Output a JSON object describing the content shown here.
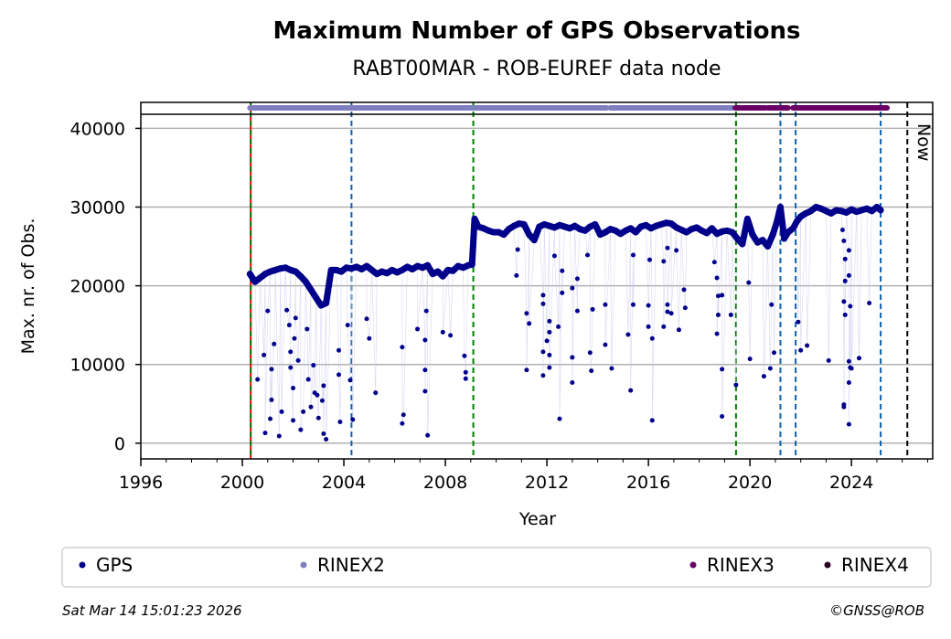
{
  "chart_data": {
    "type": "scatter",
    "title": "Maximum Number of GPS Observations",
    "subtitle": "RABT00MAR - ROB-EUREF data node",
    "xlabel": "Year",
    "ylabel": "Max. nr. of Obs.",
    "xlim": [
      1996,
      2027.2
    ],
    "ylim": [
      -2000,
      43300
    ],
    "xticks": [
      1996,
      2000,
      2004,
      2008,
      2012,
      2016,
      2020,
      2024
    ],
    "xtick_labels": [
      "1996",
      "2000",
      "2004",
      "2008",
      "2012",
      "2016",
      "2020",
      "2024"
    ],
    "yticks": [
      0,
      10000,
      20000,
      30000,
      40000
    ],
    "ytick_labels": [
      "0",
      "10000",
      "20000",
      "30000",
      "40000"
    ],
    "grid": "horizontal",
    "legend_placement": "bottom",
    "legend": [
      {
        "label": "GPS",
        "color": "#00008b"
      },
      {
        "label": "RINEX2",
        "color": "#7f7fbf"
      },
      {
        "label": "RINEX3",
        "color": "#6a0066"
      },
      {
        "label": "RINEX4",
        "color": "#2a0020"
      }
    ],
    "now_label": "Now",
    "now_year": 2026.2,
    "event_lines": [
      {
        "year": 2000.33,
        "color": "#ff0000",
        "style": "solid"
      },
      {
        "year": 2000.33,
        "color": "#008000",
        "style": "dashed"
      },
      {
        "year": 2004.3,
        "color": "#1060b0",
        "style": "dashed"
      },
      {
        "year": 2009.1,
        "color": "#008000",
        "style": "dashed"
      },
      {
        "year": 2019.45,
        "color": "#008000",
        "style": "dashed"
      },
      {
        "year": 2021.2,
        "color": "#1060b0",
        "style": "dashed"
      },
      {
        "year": 2021.8,
        "color": "#1060b0",
        "style": "dashed"
      },
      {
        "year": 2025.15,
        "color": "#1060b0",
        "style": "dashed"
      },
      {
        "year": 2026.2,
        "color": "#000000",
        "style": "dashed"
      }
    ],
    "rinex_bands": [
      {
        "format": "RINEX2",
        "from": 2000.3,
        "to": 2014.35,
        "color": "#7f7fbf"
      },
      {
        "format": "RINEX2",
        "from": 2014.5,
        "to": 2019.3,
        "color": "#7f7fbf"
      },
      {
        "format": "RINEX3",
        "from": 2019.42,
        "to": 2020.6,
        "color": "#6a0066"
      },
      {
        "format": "RINEX3",
        "from": 2020.7,
        "to": 2021.5,
        "color": "#6a0066"
      },
      {
        "format": "RINEX3",
        "from": 2021.7,
        "to": 2025.4,
        "color": "#6a0066"
      }
    ],
    "gps_series": {
      "name": "GPS",
      "color": "#00008b",
      "baseline": [
        [
          2000.3,
          21500
        ],
        [
          2000.5,
          20500
        ],
        [
          2000.7,
          21000
        ],
        [
          2000.9,
          21500
        ],
        [
          2001.1,
          21800
        ],
        [
          2001.3,
          22000
        ],
        [
          2001.5,
          22200
        ],
        [
          2001.7,
          22300
        ],
        [
          2001.9,
          22000
        ],
        [
          2002.1,
          21800
        ],
        [
          2002.3,
          21200
        ],
        [
          2002.5,
          20500
        ],
        [
          2002.7,
          19500
        ],
        [
          2002.9,
          18500
        ],
        [
          2003.1,
          17500
        ],
        [
          2003.3,
          17800
        ],
        [
          2003.5,
          22000
        ],
        [
          2003.7,
          22000
        ],
        [
          2003.9,
          21800
        ],
        [
          2004.1,
          22300
        ],
        [
          2004.3,
          22200
        ],
        [
          2004.5,
          22400
        ],
        [
          2004.7,
          22100
        ],
        [
          2004.9,
          22500
        ],
        [
          2005.1,
          22000
        ],
        [
          2005.3,
          21500
        ],
        [
          2005.5,
          21800
        ],
        [
          2005.7,
          21600
        ],
        [
          2005.9,
          22000
        ],
        [
          2006.1,
          21700
        ],
        [
          2006.3,
          22000
        ],
        [
          2006.5,
          22400
        ],
        [
          2006.7,
          22100
        ],
        [
          2006.9,
          22500
        ],
        [
          2007.1,
          22300
        ],
        [
          2007.3,
          22600
        ],
        [
          2007.5,
          21500
        ],
        [
          2007.7,
          21800
        ],
        [
          2007.9,
          21200
        ],
        [
          2008.1,
          22000
        ],
        [
          2008.3,
          21900
        ],
        [
          2008.5,
          22500
        ],
        [
          2008.7,
          22300
        ],
        [
          2008.9,
          22600
        ],
        [
          2009.05,
          22700
        ],
        [
          2009.15,
          28500
        ],
        [
          2009.3,
          27500
        ],
        [
          2009.5,
          27300
        ],
        [
          2009.7,
          27000
        ],
        [
          2009.9,
          26800
        ],
        [
          2010.1,
          26800
        ],
        [
          2010.3,
          26500
        ],
        [
          2010.5,
          27200
        ],
        [
          2010.7,
          27600
        ],
        [
          2010.9,
          27900
        ],
        [
          2011.1,
          27800
        ],
        [
          2011.3,
          26500
        ],
        [
          2011.5,
          25800
        ],
        [
          2011.7,
          27500
        ],
        [
          2011.9,
          27800
        ],
        [
          2012.1,
          27600
        ],
        [
          2012.3,
          27400
        ],
        [
          2012.5,
          27700
        ],
        [
          2012.7,
          27500
        ],
        [
          2012.9,
          27300
        ],
        [
          2013.1,
          27600
        ],
        [
          2013.3,
          27200
        ],
        [
          2013.5,
          27000
        ],
        [
          2013.7,
          27500
        ],
        [
          2013.9,
          27800
        ],
        [
          2014.1,
          26500
        ],
        [
          2014.3,
          26800
        ],
        [
          2014.5,
          27200
        ],
        [
          2014.7,
          27000
        ],
        [
          2014.9,
          26600
        ],
        [
          2015.1,
          27000
        ],
        [
          2015.3,
          27300
        ],
        [
          2015.5,
          26800
        ],
        [
          2015.7,
          27500
        ],
        [
          2015.9,
          27700
        ],
        [
          2016.1,
          27300
        ],
        [
          2016.3,
          27600
        ],
        [
          2016.5,
          27800
        ],
        [
          2016.7,
          28000
        ],
        [
          2016.9,
          27900
        ],
        [
          2017.1,
          27400
        ],
        [
          2017.3,
          27100
        ],
        [
          2017.5,
          26800
        ],
        [
          2017.7,
          27200
        ],
        [
          2017.9,
          27400
        ],
        [
          2018.1,
          27000
        ],
        [
          2018.3,
          26700
        ],
        [
          2018.5,
          27300
        ],
        [
          2018.7,
          26600
        ],
        [
          2018.9,
          26900
        ],
        [
          2019.1,
          27000
        ],
        [
          2019.3,
          26800
        ],
        [
          2019.5,
          26000
        ],
        [
          2019.7,
          25300
        ],
        [
          2019.9,
          28500
        ],
        [
          2020.1,
          26500
        ],
        [
          2020.3,
          25500
        ],
        [
          2020.5,
          25800
        ],
        [
          2020.7,
          25000
        ],
        [
          2020.9,
          26500
        ],
        [
          2021.05,
          28000
        ],
        [
          2021.2,
          30000
        ],
        [
          2021.35,
          26000
        ],
        [
          2021.5,
          26800
        ],
        [
          2021.7,
          27300
        ],
        [
          2021.85,
          28200
        ],
        [
          2022.0,
          28800
        ],
        [
          2022.2,
          29200
        ],
        [
          2022.4,
          29500
        ],
        [
          2022.6,
          30000
        ],
        [
          2022.8,
          29800
        ],
        [
          2023.0,
          29500
        ],
        [
          2023.2,
          29200
        ],
        [
          2023.4,
          29600
        ],
        [
          2023.6,
          29500
        ],
        [
          2023.8,
          29300
        ],
        [
          2024.0,
          29700
        ],
        [
          2024.2,
          29400
        ],
        [
          2024.4,
          29600
        ],
        [
          2024.6,
          29800
        ],
        [
          2024.8,
          29500
        ],
        [
          2025.0,
          30000
        ],
        [
          2025.15,
          29600
        ]
      ],
      "outliers": [
        [
          2000.6,
          8100
        ],
        [
          2000.85,
          11200
        ],
        [
          2000.9,
          1300
        ],
        [
          2001.0,
          16800
        ],
        [
          2001.1,
          3100
        ],
        [
          2001.15,
          9400
        ],
        [
          2001.15,
          5500
        ],
        [
          2001.25,
          12600
        ],
        [
          2001.45,
          900
        ],
        [
          2001.55,
          4000
        ],
        [
          2001.75,
          16900
        ],
        [
          2001.85,
          15000
        ],
        [
          2001.9,
          11600
        ],
        [
          2001.9,
          9600
        ],
        [
          2002.0,
          2900
        ],
        [
          2002.0,
          7000
        ],
        [
          2002.05,
          13300
        ],
        [
          2002.1,
          15900
        ],
        [
          2002.2,
          10500
        ],
        [
          2002.3,
          1700
        ],
        [
          2002.4,
          4000
        ],
        [
          2002.55,
          14500
        ],
        [
          2002.6,
          8100
        ],
        [
          2002.7,
          4600
        ],
        [
          2002.8,
          9900
        ],
        [
          2002.85,
          6400
        ],
        [
          2002.95,
          6100
        ],
        [
          2003.0,
          3200
        ],
        [
          2003.15,
          5400
        ],
        [
          2003.2,
          7300
        ],
        [
          2003.2,
          1200
        ],
        [
          2003.3,
          500
        ],
        [
          2003.8,
          11800
        ],
        [
          2003.8,
          8700
        ],
        [
          2003.85,
          2700
        ],
        [
          2004.15,
          15000
        ],
        [
          2004.25,
          8000
        ],
        [
          2004.35,
          3000
        ],
        [
          2004.9,
          15800
        ],
        [
          2005.0,
          13300
        ],
        [
          2005.25,
          6400
        ],
        [
          2006.3,
          12200
        ],
        [
          2006.3,
          2500
        ],
        [
          2006.35,
          3600
        ],
        [
          2006.9,
          14500
        ],
        [
          2007.2,
          13100
        ],
        [
          2007.2,
          9300
        ],
        [
          2007.2,
          6600
        ],
        [
          2007.25,
          16800
        ],
        [
          2007.3,
          1000
        ],
        [
          2007.9,
          14100
        ],
        [
          2008.2,
          13700
        ],
        [
          2008.75,
          11100
        ],
        [
          2008.8,
          9000
        ],
        [
          2008.8,
          8200
        ],
        [
          2010.8,
          21300
        ],
        [
          2010.85,
          24600
        ],
        [
          2011.2,
          16500
        ],
        [
          2011.2,
          9300
        ],
        [
          2011.3,
          15200
        ],
        [
          2011.85,
          18800
        ],
        [
          2011.85,
          17700
        ],
        [
          2011.85,
          11600
        ],
        [
          2011.85,
          8600
        ],
        [
          2012.0,
          13000
        ],
        [
          2012.1,
          15500
        ],
        [
          2012.1,
          14100
        ],
        [
          2012.1,
          11200
        ],
        [
          2012.1,
          9600
        ],
        [
          2012.3,
          23800
        ],
        [
          2012.45,
          14800
        ],
        [
          2012.5,
          3100
        ],
        [
          2012.6,
          21900
        ],
        [
          2012.6,
          19100
        ],
        [
          2013.0,
          19700
        ],
        [
          2013.0,
          10900
        ],
        [
          2013.0,
          7700
        ],
        [
          2013.2,
          16800
        ],
        [
          2013.2,
          20900
        ],
        [
          2013.6,
          23900
        ],
        [
          2013.7,
          11500
        ],
        [
          2013.75,
          9200
        ],
        [
          2013.8,
          17000
        ],
        [
          2014.3,
          17600
        ],
        [
          2014.3,
          12500
        ],
        [
          2014.55,
          9500
        ],
        [
          2015.2,
          13800
        ],
        [
          2015.3,
          6700
        ],
        [
          2015.4,
          23900
        ],
        [
          2015.4,
          17600
        ],
        [
          2016.0,
          17500
        ],
        [
          2016.0,
          14800
        ],
        [
          2016.05,
          23300
        ],
        [
          2016.15,
          13300
        ],
        [
          2016.15,
          2900
        ],
        [
          2016.6,
          23100
        ],
        [
          2016.6,
          14800
        ],
        [
          2016.75,
          24800
        ],
        [
          2016.75,
          17600
        ],
        [
          2016.75,
          16700
        ],
        [
          2016.9,
          16500
        ],
        [
          2017.1,
          24500
        ],
        [
          2017.2,
          14400
        ],
        [
          2017.4,
          19500
        ],
        [
          2017.45,
          17200
        ],
        [
          2018.6,
          23000
        ],
        [
          2018.7,
          21000
        ],
        [
          2018.75,
          18700
        ],
        [
          2018.75,
          16300
        ],
        [
          2018.7,
          13900
        ],
        [
          2018.9,
          18800
        ],
        [
          2018.9,
          9400
        ],
        [
          2018.9,
          3400
        ],
        [
          2019.25,
          16300
        ],
        [
          2019.45,
          7400
        ],
        [
          2019.95,
          20400
        ],
        [
          2020.0,
          10700
        ],
        [
          2020.55,
          8500
        ],
        [
          2020.8,
          9500
        ],
        [
          2020.85,
          17600
        ],
        [
          2020.95,
          11500
        ],
        [
          2021.9,
          15400
        ],
        [
          2022.0,
          11800
        ],
        [
          2022.25,
          12400
        ],
        [
          2023.1,
          10500
        ],
        [
          2023.65,
          27100
        ],
        [
          2023.7,
          25700
        ],
        [
          2023.75,
          23400
        ],
        [
          2023.9,
          24500
        ],
        [
          2023.9,
          21300
        ],
        [
          2023.75,
          20600
        ],
        [
          2023.7,
          18000
        ],
        [
          2023.75,
          16300
        ],
        [
          2023.95,
          17400
        ],
        [
          2023.9,
          10400
        ],
        [
          2023.95,
          9600
        ],
        [
          2024.0,
          9500
        ],
        [
          2023.9,
          7700
        ],
        [
          2023.7,
          4900
        ],
        [
          2023.7,
          4600
        ],
        [
          2023.9,
          2400
        ],
        [
          2024.3,
          10800
        ],
        [
          2024.7,
          17800
        ]
      ]
    }
  },
  "footer": {
    "timestamp": "Sat Mar 14 15:01:23 2026",
    "copyright": "©GNSS@ROB"
  }
}
